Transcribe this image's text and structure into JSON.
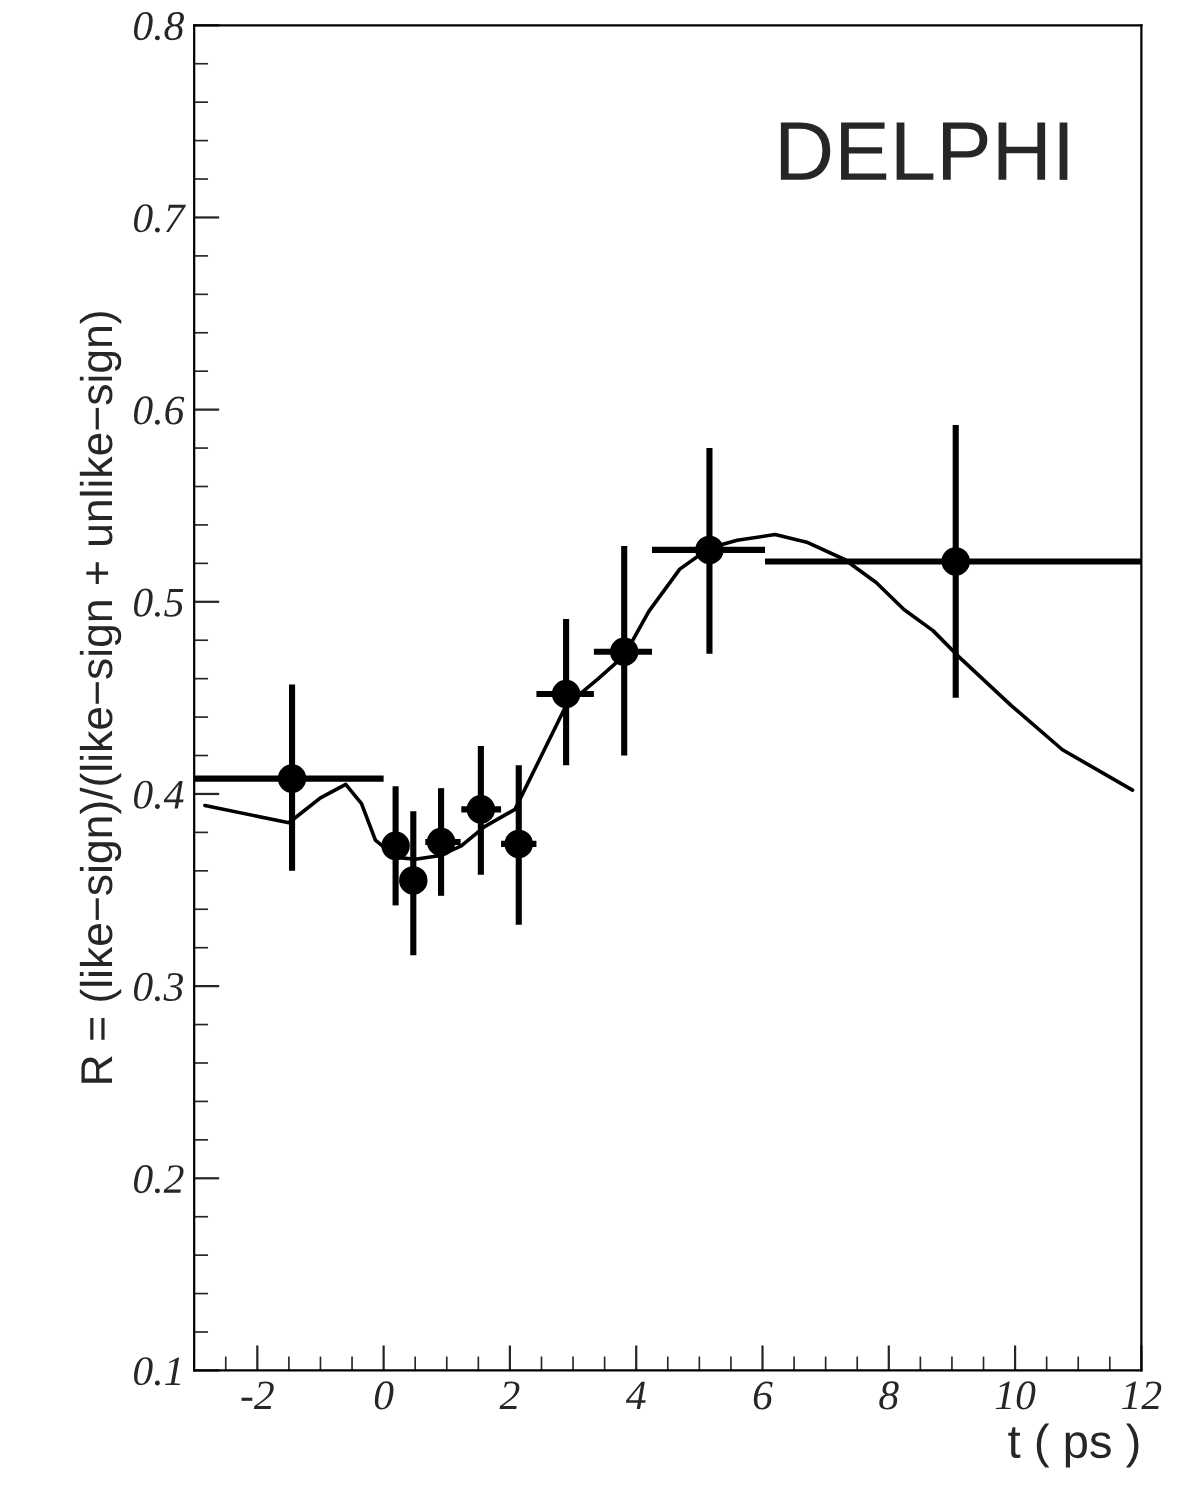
{
  "chart_data": {
    "type": "scatter",
    "xlabel": "t ( ps )",
    "ylabel": "R = (like−sign)/(like−sign + unlike−sign)",
    "annotations": [
      "DELPHI"
    ],
    "xlim": [
      -3,
      12
    ],
    "xticks": [
      -2,
      0,
      2,
      4,
      6,
      8,
      10,
      12
    ],
    "ylim": [
      0.1,
      0.8
    ],
    "yticks": [
      0.1,
      0.2,
      0.3,
      0.4,
      0.5,
      0.6,
      0.7,
      0.8
    ],
    "grid": false,
    "legend": false,
    "series": [
      {
        "color": "#000000",
        "marker": "circle",
        "x": [
          -1.45,
          0.19,
          0.47,
          0.91,
          1.54,
          2.14,
          2.89,
          3.81,
          5.16,
          9.06
        ],
        "values": [
          0.408,
          0.373,
          0.355,
          0.375,
          0.392,
          0.374,
          0.452,
          0.474,
          0.527,
          0.521
        ],
        "errors": [
          [
            0.36,
            0.457
          ],
          [
            0.342,
            0.404
          ],
          [
            0.316,
            0.391
          ],
          [
            0.347,
            0.403
          ],
          [
            0.358,
            0.425
          ],
          [
            0.332,
            0.415
          ],
          [
            0.415,
            0.491
          ],
          [
            0.42,
            0.529
          ],
          [
            0.473,
            0.58
          ],
          [
            0.45,
            0.592
          ]
        ],
        "xerrors": [
          [
            -3,
            0
          ],
          null,
          null,
          [
            0.66,
            1.22
          ],
          [
            1.23,
            1.86
          ],
          [
            1.86,
            2.42
          ],
          [
            2.42,
            3.33
          ],
          [
            3.33,
            4.25
          ],
          [
            4.25,
            6.04
          ],
          [
            6.04,
            12
          ]
        ]
      },
      {
        "type": "line",
        "color": "#000000",
        "line_style": "solid",
        "x": [
          -2.83,
          -1.5,
          -1.0,
          -0.6,
          -0.35,
          -0.13,
          0.2,
          0.5,
          0.9,
          1.23,
          1.6,
          2.08,
          2.5,
          2.89,
          3.4,
          3.81,
          4.2,
          4.69,
          5.16,
          5.6,
          6.2,
          6.7,
          7.3,
          7.8,
          8.24,
          8.7,
          9.09,
          9.94,
          10.75,
          11.86
        ],
        "values": [
          0.394,
          0.385,
          0.398,
          0.405,
          0.395,
          0.376,
          0.367,
          0.366,
          0.368,
          0.373,
          0.383,
          0.392,
          0.42,
          0.446,
          0.46,
          0.472,
          0.495,
          0.517,
          0.528,
          0.532,
          0.535,
          0.531,
          0.522,
          0.51,
          0.496,
          0.485,
          0.472,
          0.446,
          0.423,
          0.402
        ]
      }
    ]
  }
}
